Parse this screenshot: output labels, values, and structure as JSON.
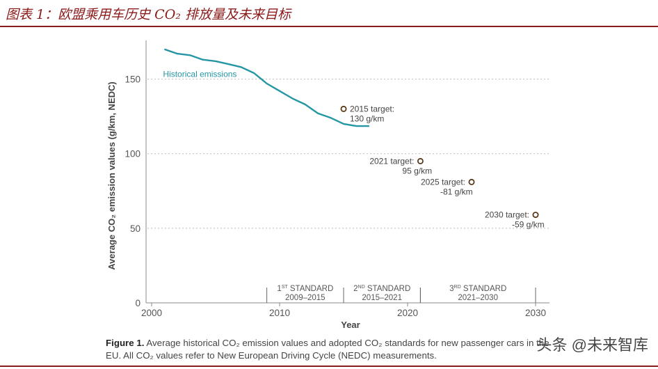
{
  "header": {
    "title": "图表 1：欧盟乘用车历史 CO₂ 排放量及未来目标"
  },
  "chart_data": {
    "type": "line",
    "xlabel": "Year",
    "ylabel": "Average CO₂ emission values (g/km, NEDC)",
    "xlim": [
      2000,
      2030
    ],
    "ylim": [
      0,
      175
    ],
    "x_ticks": [
      2000,
      2010,
      2020,
      2030
    ],
    "y_ticks": [
      0,
      50,
      100,
      150
    ],
    "grid": "horizontal dotted",
    "color": "#2596a4",
    "series": [
      {
        "name": "Historical emissions",
        "x": [
          2001,
          2002,
          2003,
          2004,
          2005,
          2006,
          2007,
          2008,
          2009,
          2010,
          2011,
          2012,
          2013,
          2014,
          2015,
          2016,
          2017
        ],
        "y": [
          170,
          167,
          166,
          163,
          162,
          160,
          158,
          154,
          147,
          142,
          137,
          133,
          127,
          124,
          120,
          118.5,
          118.5
        ]
      }
    ],
    "targets": [
      {
        "x": 2015,
        "y": 130,
        "line1": "2015 target:",
        "line2": "130 g/km"
      },
      {
        "x": 2021,
        "y": 95,
        "line1": "2021 target:",
        "line2": "95 g/km"
      },
      {
        "x": 2025,
        "y": 81,
        "line1": "2025 target:",
        "line2": "-81 g/km"
      },
      {
        "x": 2030,
        "y": 59,
        "line1": "2030 target:",
        "line2": "-59 g/km"
      }
    ],
    "standards": [
      {
        "start": 2009,
        "end": 2015,
        "ordinal": "1",
        "sup": "ST",
        "name": "STANDARD",
        "range": "2009–2015"
      },
      {
        "start": 2015,
        "end": 2021,
        "ordinal": "2",
        "sup": "ND",
        "name": "STANDARD",
        "range": "2015–2021"
      },
      {
        "start": 2021,
        "end": 2030,
        "ordinal": "3",
        "sup": "RD",
        "name": "STANDARD",
        "range": "2021–2030"
      }
    ]
  },
  "caption": {
    "figure_label": "Figure 1.",
    "text": "Average historical CO₂ emission values and adopted CO₂ standards for new passenger cars in the EU. All CO₂ values refer to New European Driving Cycle (NEDC) measurements."
  },
  "watermark": "头条 @未来智库"
}
